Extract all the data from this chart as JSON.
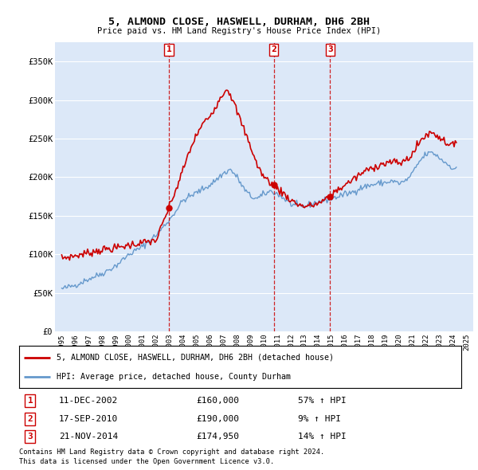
{
  "title": "5, ALMOND CLOSE, HASWELL, DURHAM, DH6 2BH",
  "subtitle": "Price paid vs. HM Land Registry's House Price Index (HPI)",
  "plot_bg_color": "#dce8f8",
  "legend_line1": "5, ALMOND CLOSE, HASWELL, DURHAM, DH6 2BH (detached house)",
  "legend_line2": "HPI: Average price, detached house, County Durham",
  "transactions": [
    {
      "num": 1,
      "date": "11-DEC-2002",
      "price": "£160,000",
      "change": "57% ↑ HPI",
      "x_val": 2002.94,
      "y_val": 160000
    },
    {
      "num": 2,
      "date": "17-SEP-2010",
      "price": "£190,000",
      "change": "9% ↑ HPI",
      "x_val": 2010.71,
      "y_val": 190000
    },
    {
      "num": 3,
      "date": "21-NOV-2014",
      "price": "£174,950",
      "change": "14% ↑ HPI",
      "x_val": 2014.89,
      "y_val": 174950
    }
  ],
  "footnote1": "Contains HM Land Registry data © Crown copyright and database right 2024.",
  "footnote2": "This data is licensed under the Open Government Licence v3.0.",
  "hpi_color": "#6699cc",
  "price_color": "#cc0000",
  "vline_color": "#cc0000",
  "ylim": [
    0,
    375000
  ],
  "xlim": [
    1994.5,
    2025.5
  ],
  "yticks": [
    0,
    50000,
    100000,
    150000,
    200000,
    250000,
    300000,
    350000
  ],
  "ytick_labels": [
    "£0",
    "£50K",
    "£100K",
    "£150K",
    "£200K",
    "£250K",
    "£300K",
    "£350K"
  ],
  "xticks": [
    1995,
    1996,
    1997,
    1998,
    1999,
    2000,
    2001,
    2002,
    2003,
    2004,
    2005,
    2006,
    2007,
    2008,
    2009,
    2010,
    2011,
    2012,
    2013,
    2014,
    2015,
    2016,
    2017,
    2018,
    2019,
    2020,
    2021,
    2022,
    2023,
    2024,
    2025
  ]
}
